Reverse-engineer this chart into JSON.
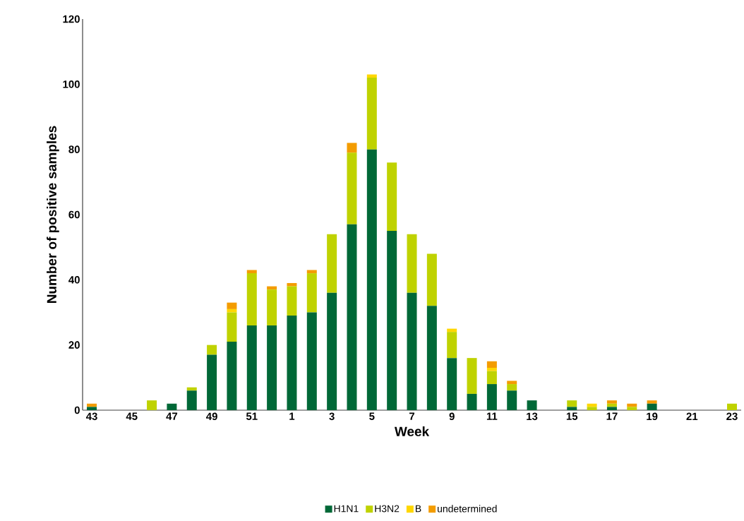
{
  "chart_data": {
    "type": "bar",
    "stacked": true,
    "xlabel": "Week",
    "ylabel": "Number of positive samples",
    "categories": [
      "43",
      null,
      "45",
      null,
      "47",
      null,
      "49",
      null,
      "51",
      null,
      "1",
      null,
      "3",
      null,
      "5",
      null,
      "7",
      null,
      "9",
      null,
      "11",
      null,
      "13",
      null,
      "15",
      null,
      "17",
      null,
      "19",
      null,
      "21",
      null,
      "23"
    ],
    "series": [
      {
        "name": "H1N1",
        "color": "#006837",
        "values": [
          1,
          0,
          0,
          0,
          2,
          6,
          17,
          21,
          26,
          26,
          29,
          30,
          36,
          57,
          80,
          55,
          36,
          32,
          16,
          5,
          8,
          6,
          3,
          0,
          1,
          0,
          1,
          0,
          2,
          0,
          0,
          0,
          0
        ]
      },
      {
        "name": "H3N2",
        "color": "#bfd200",
        "values": [
          0,
          0,
          0,
          3,
          0,
          1,
          3,
          9,
          16,
          11,
          9,
          12,
          18,
          22,
          22,
          21,
          18,
          16,
          8,
          11,
          4,
          2,
          0,
          0,
          2,
          1,
          1,
          1,
          0,
          0,
          0,
          0,
          2
        ]
      },
      {
        "name": "B",
        "color": "#ffd700",
        "values": [
          0,
          0,
          0,
          0,
          0,
          0,
          0,
          1,
          0,
          0,
          0,
          0,
          0,
          0,
          1,
          0,
          0,
          0,
          1,
          0,
          1,
          0,
          0,
          0,
          0,
          1,
          0,
          0,
          0,
          0,
          0,
          0,
          0
        ]
      },
      {
        "name": "undetermined",
        "color": "#f39c00",
        "values": [
          1,
          0,
          0,
          0,
          0,
          0,
          0,
          2,
          1,
          1,
          1,
          1,
          0,
          3,
          0,
          0,
          0,
          0,
          0,
          0,
          2,
          1,
          0,
          0,
          0,
          0,
          1,
          1,
          1,
          0,
          0,
          0,
          0
        ]
      }
    ],
    "ylim": [
      0,
      120
    ],
    "yticks": [
      0,
      20,
      40,
      60,
      80,
      100,
      120
    ],
    "grid": false,
    "legend": "bottom"
  }
}
